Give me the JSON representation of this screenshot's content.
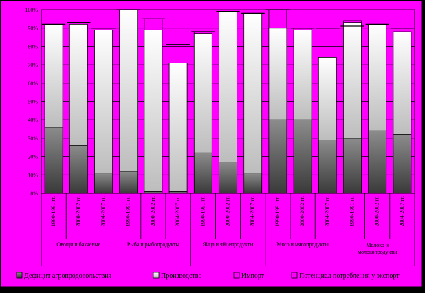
{
  "colors": {
    "background": "#ff00ff",
    "frame": "#000000",
    "deficit_dark": "#3a3a3a",
    "deficit_light": "#8c8c8c",
    "production_dark": "#bdbdbd",
    "production_light": "#ffffff",
    "import": "#ff00ff",
    "consumption_line": "#000000"
  },
  "chart_data": {
    "type": "bar",
    "stacked": true,
    "ylim": [
      0,
      100
    ],
    "y_ticks": [
      "0%",
      "10%",
      "20%",
      "30%",
      "40%",
      "50%",
      "60%",
      "70%",
      "80%",
      "90%",
      "100%"
    ],
    "categories": [
      "1990-1991 гг.",
      "2000-2002 гг.",
      "2004-2007 гг.",
      "1990-1991 гг.",
      "2000-2002 гг.",
      "2004-2007 гг.",
      "1990-1991 гг.",
      "2000-2002 гг.",
      "2004-2007 гг.",
      "1990-1991 гг.",
      "2000-2002 гг.",
      "2004-2007 гг.",
      "1990-1991 гг.",
      "2000-2002 гг.",
      "2004-2007 гг."
    ],
    "groups": [
      "Овощи и бахчевые",
      "Рыба и рыбопродукты",
      "Яйца и яйцепродукты",
      "Мясо и мясопродукты",
      "Молоко и молокопродукты"
    ],
    "series": [
      {
        "name": "Дефицит агропродовольствия",
        "values": [
          36,
          26,
          11,
          12,
          1,
          1,
          22,
          17,
          11,
          40,
          40,
          29,
          30,
          34,
          32
        ]
      },
      {
        "name": "Производство",
        "values": [
          56,
          66,
          78,
          88,
          88,
          70,
          65,
          82,
          87,
          50,
          49,
          45,
          63,
          58,
          56
        ]
      },
      {
        "name": "Импорт",
        "values": [
          0,
          0,
          0,
          0,
          6,
          0,
          1,
          0,
          0,
          10,
          1,
          0,
          1,
          0,
          0
        ]
      }
    ],
    "consumption": {
      "name": "Потенциал потребления у экспорт",
      "values": [
        92,
        93,
        90,
        100,
        95,
        81,
        88,
        99,
        98,
        100,
        90,
        90,
        91,
        92,
        90
      ]
    },
    "legend_position": "bottom"
  }
}
